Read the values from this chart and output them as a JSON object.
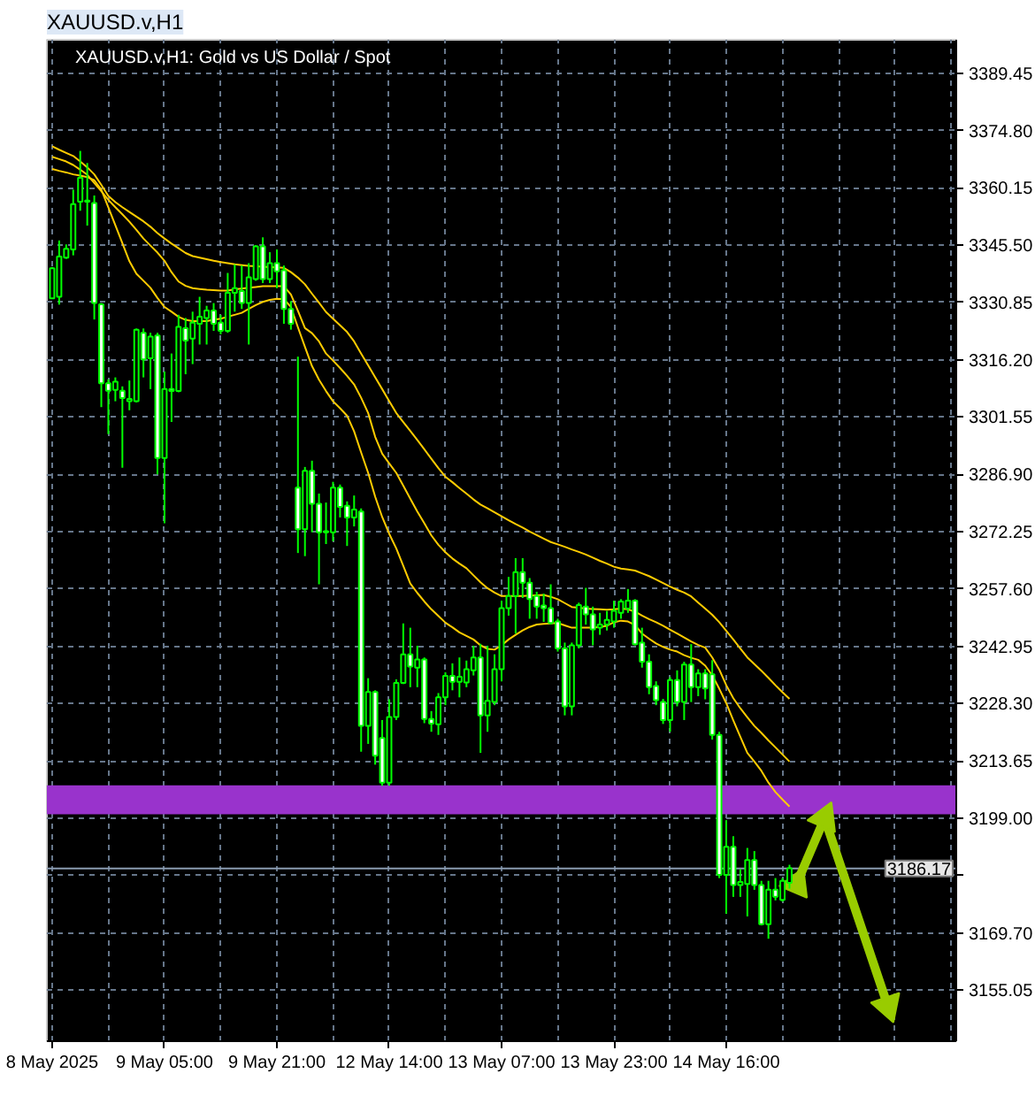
{
  "chart_data": {
    "type": "candlestick",
    "title": "XAUUSD.v,H1",
    "subtitle": "XAUUSD.v,H1:  Gold vs US Dollar / Spot",
    "categories": [
      "8 May 2025",
      null,
      null,
      null,
      null,
      null,
      null,
      null,
      null,
      null,
      null,
      null,
      null,
      null,
      null,
      null,
      "9 May 05:00",
      null,
      null,
      null,
      null,
      null,
      null,
      null,
      null,
      null,
      null,
      null,
      null,
      null,
      null,
      null,
      "9 May 21:00",
      null,
      null,
      null,
      null,
      null,
      null,
      null,
      null,
      null,
      null,
      null,
      null,
      null,
      null,
      null,
      "12 May 14:00",
      null,
      null,
      null,
      null,
      null,
      null,
      null,
      null,
      null,
      null,
      null,
      null,
      null,
      null,
      null,
      "13 May 07:00",
      null,
      null,
      null,
      null,
      null,
      null,
      null,
      null,
      null,
      null,
      null,
      null,
      null,
      null,
      null,
      "13 May 23:00",
      null,
      null,
      null,
      null,
      null,
      null,
      null,
      null,
      null,
      null,
      null,
      null,
      null,
      null,
      null,
      "14 May 16:00",
      null,
      null,
      null,
      null,
      null,
      null,
      null,
      null,
      null,
      null,
      null,
      null,
      null,
      null,
      null,
      null,
      null,
      null,
      null,
      null,
      null,
      null,
      null,
      null,
      null,
      null,
      null,
      null,
      null,
      null,
      null,
      null
    ],
    "ylim": [
      3142,
      3398
    ],
    "yticks": [
      {
        "value": 3155.05,
        "label": "3155.05"
      },
      {
        "value": 3169.7,
        "label": "3169.70"
      },
      {
        "value": 3184.35,
        "label": null
      },
      {
        "value": 3199.0,
        "label": "3199.00"
      },
      {
        "value": 3213.65,
        "label": "3213.65"
      },
      {
        "value": 3228.3,
        "label": "3228.30"
      },
      {
        "value": 3242.95,
        "label": "3242.95"
      },
      {
        "value": 3257.6,
        "label": "3257.60"
      },
      {
        "value": 3272.25,
        "label": "3272.25"
      },
      {
        "value": 3286.9,
        "label": "3286.90"
      },
      {
        "value": 3301.55,
        "label": "3301.55"
      },
      {
        "value": 3316.2,
        "label": "3316.20"
      },
      {
        "value": 3330.85,
        "label": "3330.85"
      },
      {
        "value": 3345.5,
        "label": "3345.50"
      },
      {
        "value": 3360.15,
        "label": "3360.15"
      },
      {
        "value": 3374.8,
        "label": "3374.80"
      },
      {
        "value": 3389.45,
        "label": "3389.45"
      }
    ],
    "grid": true,
    "bands": [
      {
        "axis": "y",
        "from": 3200.0,
        "to": 3207.4,
        "color": "#9933cc"
      }
    ],
    "ref_lines": [
      {
        "axis": "y",
        "value": 3186.17,
        "label": "3186.17",
        "color": "#8a9bb0"
      }
    ],
    "series": [
      {
        "color": "#00ff00",
        "colors": [
          "#000000",
          "#000000",
          "#000000",
          "#000000",
          "#000000",
          "#000000",
          "#ffffff",
          "#ffffff",
          "#ffffff",
          "#000000",
          "#ffffff",
          "#000000",
          "#000000",
          "#ffffff",
          "#000000",
          "#ffffff",
          "#000000",
          "#ffffff",
          "#000000",
          "#ffffff",
          "#000000",
          "#000000",
          "#000000",
          "#ffffff",
          "#ffffff",
          "#000000",
          "#000000",
          "#ffffff",
          "#000000",
          "#000000",
          "#ffffff",
          "#000000",
          "#ffffff",
          "#ffffff",
          "#ffffff",
          "#ffffff",
          "#000000",
          "#ffffff",
          "#ffffff",
          "#000000",
          "#000000",
          "#ffffff",
          "#ffffff",
          "#000000",
          "#ffffff",
          "#000000",
          "#ffffff",
          "#ffffff",
          "#000000",
          "#000000",
          "#000000",
          "#ffffff",
          "#000000",
          "#ffffff",
          "#ffffff",
          "#000000",
          "#000000",
          "#ffffff",
          "#000000",
          "#000000",
          "#000000",
          "#ffffff",
          "#000000",
          "#000000",
          "#000000",
          "#000000",
          "#000000",
          "#ffffff",
          "#ffffff",
          "#ffffff",
          "#ffffff",
          "#ffffff",
          "#ffffff",
          "#ffffff",
          "#000000",
          "#000000",
          "#ffffff",
          "#ffffff",
          "#000000",
          "#000000",
          "#000000",
          "#000000",
          "#000000",
          "#ffffff",
          "#ffffff",
          "#ffffff",
          "#ffffff",
          "#ffffff",
          "#000000",
          "#ffffff",
          "#000000",
          "#ffffff",
          "#000000",
          "#ffffff",
          "#ffffff",
          "#ffffff",
          "#000000",
          "#ffffff",
          "#000000",
          "#000000",
          "#ffffff",
          "#ffffff",
          "#000000",
          "#ffffff",
          "#000000",
          "#000000",
          null,
          null,
          null,
          null,
          null,
          null,
          null,
          null,
          null,
          null,
          null,
          null,
          null,
          null,
          null,
          null,
          null,
          null,
          null,
          null,
          null,
          null,
          null
        ],
        "ohlc": [
          [
            3331.9,
            3339.9,
            3331.9,
            3339.6
          ],
          [
            3332.3,
            3346.7,
            3330.3,
            3342.6
          ],
          [
            3342.3,
            3345.7,
            3342.0,
            3344.6
          ],
          [
            3344.4,
            3359.7,
            3342.9,
            3356.0
          ],
          [
            3356.6,
            3369.6,
            3354.3,
            3362.7
          ],
          [
            3356.6,
            3366.5,
            3350.5,
            3356.9
          ],
          [
            3356.3,
            3358.2,
            3326.5,
            3330.7
          ],
          [
            3330.4,
            3330.7,
            3304.1,
            3310.2
          ],
          [
            3310.2,
            3311.2,
            3297.2,
            3308.3
          ],
          [
            3308.5,
            3311.7,
            3305.6,
            3310.6
          ],
          [
            3308.3,
            3309.4,
            3288.6,
            3306.4
          ],
          [
            3305.6,
            3310.9,
            3303.3,
            3306.2
          ],
          [
            3305.6,
            3324.2,
            3305.3,
            3323.9
          ],
          [
            3323.1,
            3324.2,
            3311.7,
            3316.3
          ],
          [
            3316.6,
            3323.1,
            3308.7,
            3322.1
          ],
          [
            3322.4,
            3323.1,
            3286.9,
            3291.1
          ],
          [
            3291.1,
            3313.2,
            3274.4,
            3308.7
          ],
          [
            3308.7,
            3317.8,
            3300.3,
            3308.2
          ],
          [
            3308.2,
            3327.7,
            3307.9,
            3324.6
          ],
          [
            3324.3,
            3326.9,
            3312.5,
            3321.1
          ],
          [
            3321.6,
            3328.5,
            3315.1,
            3325.7
          ],
          [
            3325.4,
            3332.3,
            3320.1,
            3327.2
          ],
          [
            3326.9,
            3330.0,
            3320.1,
            3328.8
          ],
          [
            3328.8,
            3330.7,
            3323.6,
            3325.4
          ],
          [
            3325.7,
            3327.7,
            3322.7,
            3323.6
          ],
          [
            3323.6,
            3338.4,
            3323.1,
            3333.3
          ],
          [
            3333.3,
            3340.6,
            3328.5,
            3334.5
          ],
          [
            3333.8,
            3340.3,
            3329.2,
            3330.7
          ],
          [
            3330.7,
            3340.9,
            3320.1,
            3337.3
          ],
          [
            3336.8,
            3345.5,
            3336.4,
            3345.2
          ],
          [
            3345.2,
            3347.5,
            3335.8,
            3336.8
          ],
          [
            3336.8,
            3343.7,
            3335.8,
            3340.9
          ],
          [
            3340.9,
            3344.4,
            3334.5,
            3338.8
          ],
          [
            3339.1,
            3340.3,
            3325.4,
            3329.2
          ],
          [
            3329.2,
            3331.2,
            3323.9,
            3325.4
          ],
          [
            3283.5,
            3317.0,
            3266.8,
            3272.9
          ],
          [
            3272.9,
            3288.8,
            3266.0,
            3287.8
          ],
          [
            3287.8,
            3290.4,
            3272.1,
            3279.4
          ],
          [
            3279.4,
            3282.0,
            3258.8,
            3272.1
          ],
          [
            3272.1,
            3279.7,
            3269.1,
            3272.4
          ],
          [
            3272.1,
            3285.0,
            3269.8,
            3283.5
          ],
          [
            3283.5,
            3284.3,
            3275.9,
            3278.6
          ],
          [
            3278.9,
            3280.0,
            3268.6,
            3275.9
          ],
          [
            3275.9,
            3281.5,
            3273.6,
            3277.9
          ],
          [
            3277.4,
            3278.2,
            3216.0,
            3222.6
          ],
          [
            3222.6,
            3234.8,
            3218.0,
            3231.3
          ],
          [
            3231.3,
            3231.7,
            3212.7,
            3215.0
          ],
          [
            3219.5,
            3224.1,
            3207.3,
            3208.1
          ],
          [
            3208.1,
            3229.4,
            3207.3,
            3224.9
          ],
          [
            3224.9,
            3234.5,
            3224.1,
            3233.6
          ],
          [
            3233.6,
            3248.8,
            3233.3,
            3240.9
          ],
          [
            3240.9,
            3247.7,
            3232.5,
            3237.8
          ],
          [
            3237.5,
            3243.1,
            3232.5,
            3239.6
          ],
          [
            3239.6,
            3240.1,
            3223.3,
            3224.4
          ],
          [
            3224.4,
            3226.4,
            3221.1,
            3223.2
          ],
          [
            3223.0,
            3231.0,
            3220.3,
            3229.9
          ],
          [
            3229.9,
            3236.3,
            3227.9,
            3235.4
          ],
          [
            3235.4,
            3238.6,
            3231.7,
            3233.9
          ],
          [
            3233.9,
            3240.1,
            3229.9,
            3235.2
          ],
          [
            3233.7,
            3239.3,
            3232.5,
            3237.1
          ],
          [
            3236.8,
            3243.1,
            3235.5,
            3240.1
          ],
          [
            3240.1,
            3243.6,
            3215.7,
            3225.3
          ],
          [
            3225.3,
            3243.1,
            3221.1,
            3229.0
          ],
          [
            3228.7,
            3240.9,
            3227.9,
            3237.1
          ],
          [
            3237.1,
            3254.6,
            3234.0,
            3252.7
          ],
          [
            3252.7,
            3260.7,
            3250.8,
            3255.8
          ],
          [
            3255.8,
            3265.5,
            3246.2,
            3261.9
          ],
          [
            3261.9,
            3265.5,
            3255.3,
            3259.2
          ],
          [
            3259.2,
            3260.4,
            3250.0,
            3255.0
          ],
          [
            3255.8,
            3256.9,
            3250.0,
            3253.1
          ],
          [
            3253.4,
            3256.4,
            3249.2,
            3252.7
          ],
          [
            3252.7,
            3258.8,
            3248.5,
            3248.9
          ],
          [
            3249.3,
            3250.0,
            3241.6,
            3242.4
          ],
          [
            3242.4,
            3243.9,
            3225.3,
            3227.6
          ],
          [
            3227.6,
            3243.9,
            3225.3,
            3243.2
          ],
          [
            3243.2,
            3254.1,
            3242.4,
            3253.5
          ],
          [
            3253.1,
            3257.9,
            3248.5,
            3251.1
          ],
          [
            3251.1,
            3253.1,
            3243.2,
            3247.3
          ],
          [
            3247.7,
            3251.5,
            3245.9,
            3248.5
          ],
          [
            3248.5,
            3252.0,
            3247.0,
            3249.7
          ],
          [
            3249.3,
            3254.6,
            3247.7,
            3252.0
          ],
          [
            3251.5,
            3255.0,
            3250.0,
            3254.4
          ],
          [
            3252.6,
            3257.6,
            3251.5,
            3254.6
          ],
          [
            3254.6,
            3255.0,
            3243.2,
            3243.5
          ],
          [
            3243.9,
            3247.7,
            3237.5,
            3239.0
          ],
          [
            3239.0,
            3240.9,
            3230.7,
            3232.5
          ],
          [
            3232.8,
            3234.0,
            3227.9,
            3229.2
          ],
          [
            3228.7,
            3229.5,
            3223.1,
            3224.1
          ],
          [
            3224.1,
            3235.1,
            3221.1,
            3234.3
          ],
          [
            3234.3,
            3236.8,
            3227.6,
            3228.7
          ],
          [
            3228.7,
            3239.0,
            3224.1,
            3238.3
          ],
          [
            3238.3,
            3243.5,
            3228.7,
            3232.5
          ],
          [
            3232.5,
            3237.1,
            3230.2,
            3236.0
          ],
          [
            3236.0,
            3237.1,
            3229.4,
            3232.2
          ],
          [
            3235.8,
            3239.4,
            3219.1,
            3220.3
          ],
          [
            3220.3,
            3221.1,
            3183.7,
            3184.5
          ],
          [
            3184.5,
            3198.5,
            3174.6,
            3191.7
          ],
          [
            3191.7,
            3194.4,
            3178.9,
            3181.9
          ],
          [
            3181.9,
            3186.0,
            3178.9,
            3182.7
          ],
          [
            3182.2,
            3191.4,
            3173.9,
            3188.3
          ],
          [
            3188.3,
            3190.6,
            3180.7,
            3181.9
          ],
          [
            3181.9,
            3183.0,
            3171.6,
            3171.9
          ],
          [
            3171.9,
            3183.0,
            3168.2,
            3180.7
          ],
          [
            3180.7,
            3183.7,
            3178.0,
            3178.9
          ],
          [
            3178.1,
            3183.7,
            3177.7,
            3183.0
          ],
          [
            3182.5,
            3187.1,
            3181.0,
            3186.2
          ],
          null,
          null,
          null,
          null,
          null,
          null,
          null,
          null,
          null,
          null,
          null,
          null,
          null,
          null,
          null,
          null,
          null,
          null,
          null,
          null,
          null,
          null,
          null
        ]
      },
      {
        "type": "line",
        "color": "#ffcc00",
        "values": [
          3370.8,
          3369.9,
          3369.1,
          3368.3,
          3366.9,
          3365.4,
          3363.6,
          3360.9,
          3358.1,
          3356.5,
          3355.2,
          3354.0,
          3352.8,
          3351.6,
          3350.2,
          3348.6,
          3347.2,
          3345.9,
          3344.7,
          3343.5,
          3342.7,
          3342.3,
          3341.9,
          3341.5,
          3341.2,
          3340.9,
          3340.6,
          3340.4,
          3340.2,
          3340.1,
          3340.0,
          3339.9,
          3339.8,
          3339.7,
          3338.6,
          3337.2,
          3335.5,
          3333.1,
          3330.8,
          3328.4,
          3326.7,
          3325.0,
          3323.3,
          3320.9,
          3317.8,
          3314.8,
          3311.7,
          3308.7,
          3305.6,
          3302.6,
          3300.3,
          3298.0,
          3295.7,
          3293.3,
          3290.9,
          3288.5,
          3286.3,
          3284.9,
          3283.4,
          3282.0,
          3280.5,
          3279.2,
          3278.2,
          3277.2,
          3276.2,
          3275.2,
          3274.2,
          3273.3,
          3272.3,
          3271.4,
          3270.5,
          3269.6,
          3269.0,
          3268.4,
          3267.7,
          3267.1,
          3266.4,
          3265.6,
          3264.8,
          3264.1,
          3263.3,
          3262.8,
          3262.6,
          3262.3,
          3261.6,
          3260.9,
          3260.0,
          3259.1,
          3258.2,
          3257.4,
          3256.7,
          3255.7,
          3254.1,
          3252.6,
          3251.0,
          3249.1,
          3246.9,
          3244.7,
          3242.4,
          3240.1,
          3238.4,
          3236.7,
          3234.9,
          3233.0,
          3231.2,
          3229.5,
          null,
          null,
          null,
          null,
          null,
          null,
          null,
          null,
          null,
          null,
          null,
          null,
          null,
          null,
          null,
          null,
          null,
          null,
          null,
          null,
          null,
          null,
          null
        ]
      },
      {
        "type": "line",
        "color": "#ffcc00",
        "values": [
          3368.1,
          3367.5,
          3366.9,
          3366.0,
          3364.8,
          3363.5,
          3361.4,
          3359.3,
          3357.1,
          3355.2,
          3353.4,
          3351.5,
          3349.4,
          3347.2,
          3345.4,
          3343.6,
          3341.5,
          3338.6,
          3336.2,
          3335.1,
          3334.5,
          3334.3,
          3334.1,
          3334.0,
          3333.9,
          3333.9,
          3334.2,
          3334.4,
          3334.6,
          3334.8,
          3335.0,
          3335.0,
          3335.0,
          3335.0,
          3332.9,
          3328.7,
          3324.3,
          3323.0,
          3320.9,
          3317.8,
          3316.0,
          3314.1,
          3312.1,
          3309.9,
          3306.5,
          3302.6,
          3296.5,
          3292.2,
          3289.7,
          3287.3,
          3284.0,
          3280.7,
          3277.4,
          3274.4,
          3271.3,
          3268.9,
          3267.0,
          3265.4,
          3264.1,
          3262.9,
          3261.1,
          3259.3,
          3257.8,
          3256.7,
          3255.8,
          3255.8,
          3255.8,
          3255.8,
          3255.9,
          3256.0,
          3256.1,
          3255.6,
          3255.0,
          3254.0,
          3253.0,
          3252.8,
          3252.6,
          3252.5,
          3252.4,
          3252.3,
          3252.4,
          3252.6,
          3252.4,
          3251.8,
          3250.8,
          3249.9,
          3249.1,
          3248.2,
          3247.2,
          3246.2,
          3245.2,
          3244.2,
          3243.3,
          3242.6,
          3240.1,
          3237.0,
          3233.0,
          3229.7,
          3227.1,
          3224.8,
          3222.6,
          3220.8,
          3218.9,
          3217.1,
          3215.3,
          3213.5,
          null,
          null,
          null,
          null,
          null,
          null,
          null,
          null,
          null,
          null,
          null,
          null,
          null,
          null,
          null,
          null,
          null,
          null,
          null,
          null,
          null,
          null,
          null
        ]
      },
      {
        "type": "line",
        "color": "#ffcc00",
        "values": [
          3365.0,
          3364.5,
          3364.1,
          3363.6,
          3363.3,
          3362.9,
          3362.1,
          3359.7,
          3355.2,
          3350.6,
          3346.0,
          3341.4,
          3338.2,
          3336.4,
          3334.6,
          3332.0,
          3329.7,
          3328.5,
          3327.2,
          3326.4,
          3326.1,
          3326.1,
          3326.1,
          3326.4,
          3326.7,
          3327.2,
          3327.7,
          3328.2,
          3329.2,
          3330.2,
          3331.0,
          3331.5,
          3331.8,
          3331.7,
          3329.7,
          3324.5,
          3319.5,
          3314.6,
          3311.1,
          3308.2,
          3305.6,
          3303.8,
          3301.9,
          3297.9,
          3292.5,
          3287.3,
          3281.2,
          3276.0,
          3271.7,
          3268.0,
          3263.5,
          3259.0,
          3256.6,
          3254.4,
          3252.4,
          3250.7,
          3249.0,
          3247.8,
          3246.5,
          3245.6,
          3244.7,
          3243.2,
          3242.3,
          3242.1,
          3243.2,
          3244.7,
          3245.9,
          3247.0,
          3247.9,
          3248.5,
          3248.7,
          3248.8,
          3248.9,
          3248.3,
          3247.7,
          3247.7,
          3247.7,
          3247.7,
          3247.9,
          3248.2,
          3249.1,
          3249.5,
          3249.3,
          3248.4,
          3246.2,
          3244.9,
          3243.7,
          3242.8,
          3242.1,
          3241.6,
          3240.7,
          3240.0,
          3239.5,
          3238.0,
          3235.5,
          3232.1,
          3228.4,
          3224.0,
          3219.8,
          3215.7,
          3213.5,
          3211.1,
          3208.1,
          3205.7,
          3203.8,
          3202.0,
          null,
          null,
          null,
          null,
          null,
          null,
          null,
          null,
          null,
          null,
          null,
          null,
          null,
          null,
          null,
          null,
          null,
          null,
          null,
          null,
          null,
          null,
          null
        ]
      },
      {
        "type": "line",
        "color": "#99cc00",
        "marker": "triangle",
        "values": [
          null,
          null,
          null,
          null,
          null,
          null,
          null,
          null,
          null,
          null,
          null,
          null,
          null,
          null,
          null,
          null,
          null,
          null,
          null,
          null,
          null,
          null,
          null,
          null,
          null,
          null,
          null,
          null,
          null,
          null,
          null,
          null,
          null,
          null,
          null,
          null,
          null,
          null,
          null,
          null,
          null,
          null,
          null,
          null,
          null,
          null,
          null,
          null,
          null,
          null,
          null,
          null,
          null,
          null,
          null,
          null,
          null,
          null,
          null,
          null,
          null,
          null,
          null,
          null,
          null,
          null,
          null,
          null,
          null,
          null,
          null,
          null,
          null,
          null,
          null,
          null,
          null,
          null,
          null,
          null,
          null,
          null,
          null,
          null,
          null,
          null,
          null,
          null,
          null,
          null,
          null,
          null,
          null,
          null,
          null,
          null,
          null,
          null,
          null,
          null,
          null,
          null,
          null,
          null,
          null,
          null,
          3182.2,
          null,
          null,
          null,
          3199.0,
          null,
          null,
          null,
          null,
          null,
          null,
          null,
          null,
          3151.0,
          null,
          null,
          null,
          null,
          null,
          null,
          null,
          null,
          null
        ]
      }
    ]
  }
}
